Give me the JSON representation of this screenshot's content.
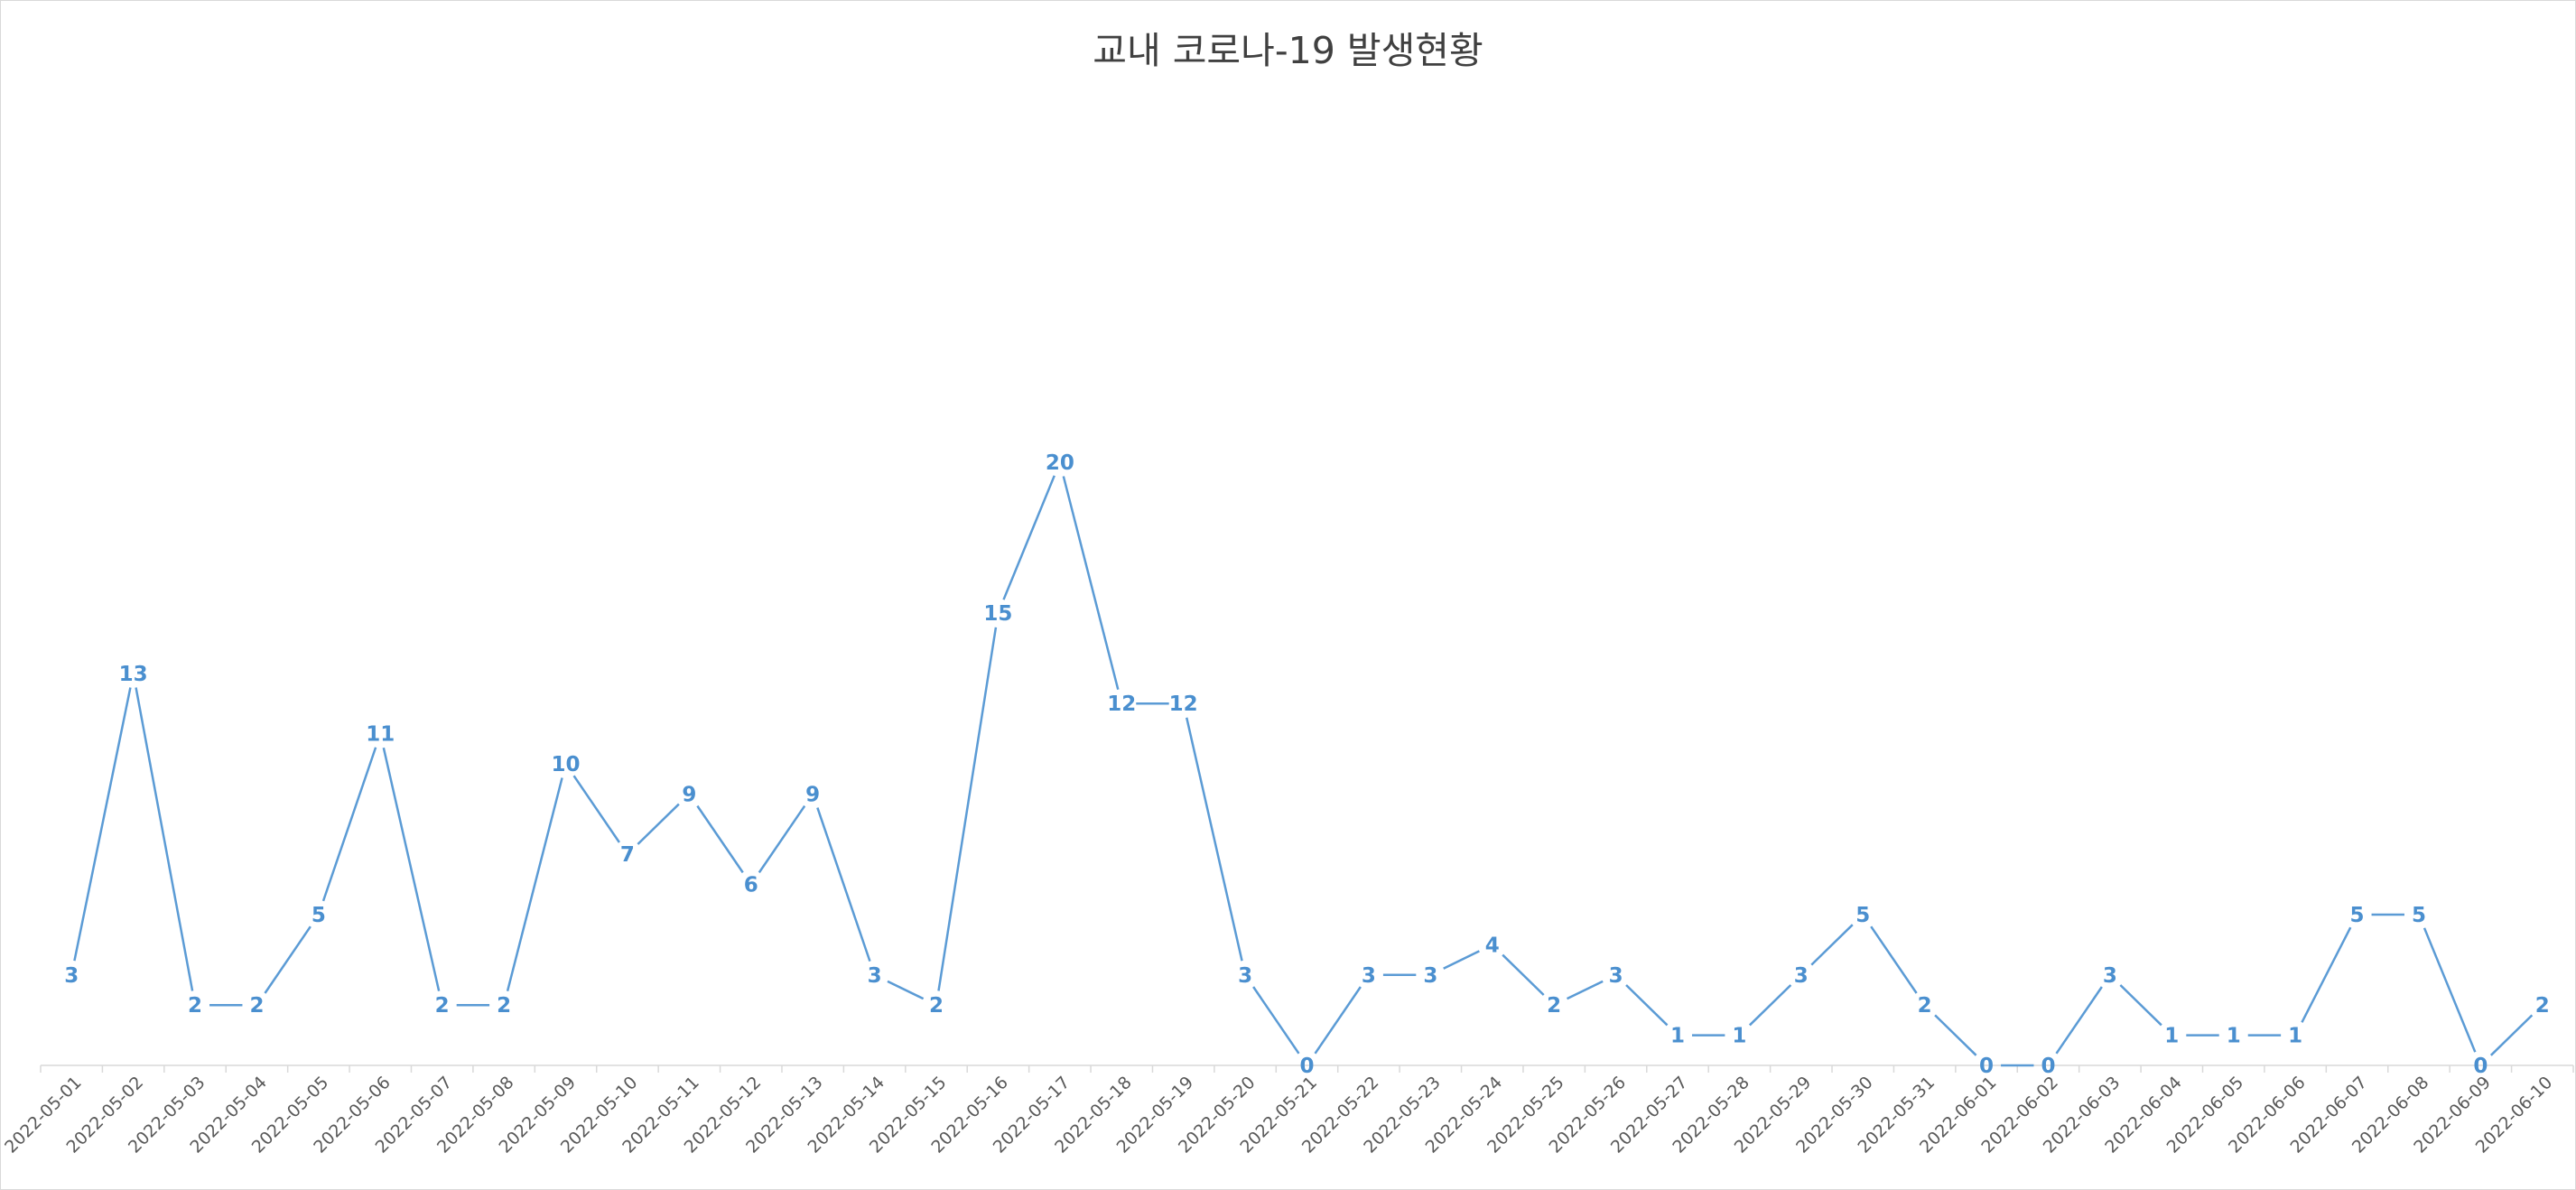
{
  "chart_data": {
    "type": "line",
    "title": "교내 코로나-19 발생현황",
    "xlabel": "",
    "ylabel": "",
    "ylim": [
      0,
      25
    ],
    "grid": false,
    "legend": "none",
    "data_labels": true,
    "colors": {
      "line": "#5B9BD5",
      "label": "#4A8FCF",
      "axis": "#d9d9d9",
      "tick": "#595959",
      "title": "#404040"
    },
    "categories": [
      "2022-05-01",
      "2022-05-02",
      "2022-05-03",
      "2022-05-04",
      "2022-05-05",
      "2022-05-06",
      "2022-05-07",
      "2022-05-08",
      "2022-05-09",
      "2022-05-10",
      "2022-05-11",
      "2022-05-12",
      "2022-05-13",
      "2022-05-14",
      "2022-05-15",
      "2022-05-16",
      "2022-05-17",
      "2022-05-18",
      "2022-05-19",
      "2022-05-20",
      "2022-05-21",
      "2022-05-22",
      "2022-05-23",
      "2022-05-24",
      "2022-05-25",
      "2022-05-26",
      "2022-05-27",
      "2022-05-28",
      "2022-05-29",
      "2022-05-30",
      "2022-05-31",
      "2022-06-01",
      "2022-06-02",
      "2022-06-03",
      "2022-06-04",
      "2022-06-05",
      "2022-06-06",
      "2022-06-07",
      "2022-06-08",
      "2022-06-09",
      "2022-06-10"
    ],
    "series": [
      {
        "values": [
          3,
          13,
          2,
          2,
          5,
          11,
          2,
          2,
          10,
          7,
          9,
          6,
          9,
          3,
          2,
          15,
          20,
          12,
          12,
          3,
          0,
          3,
          3,
          4,
          2,
          3,
          1,
          1,
          3,
          5,
          2,
          0,
          0,
          3,
          1,
          1,
          1,
          5,
          5,
          0,
          2
        ]
      }
    ]
  }
}
